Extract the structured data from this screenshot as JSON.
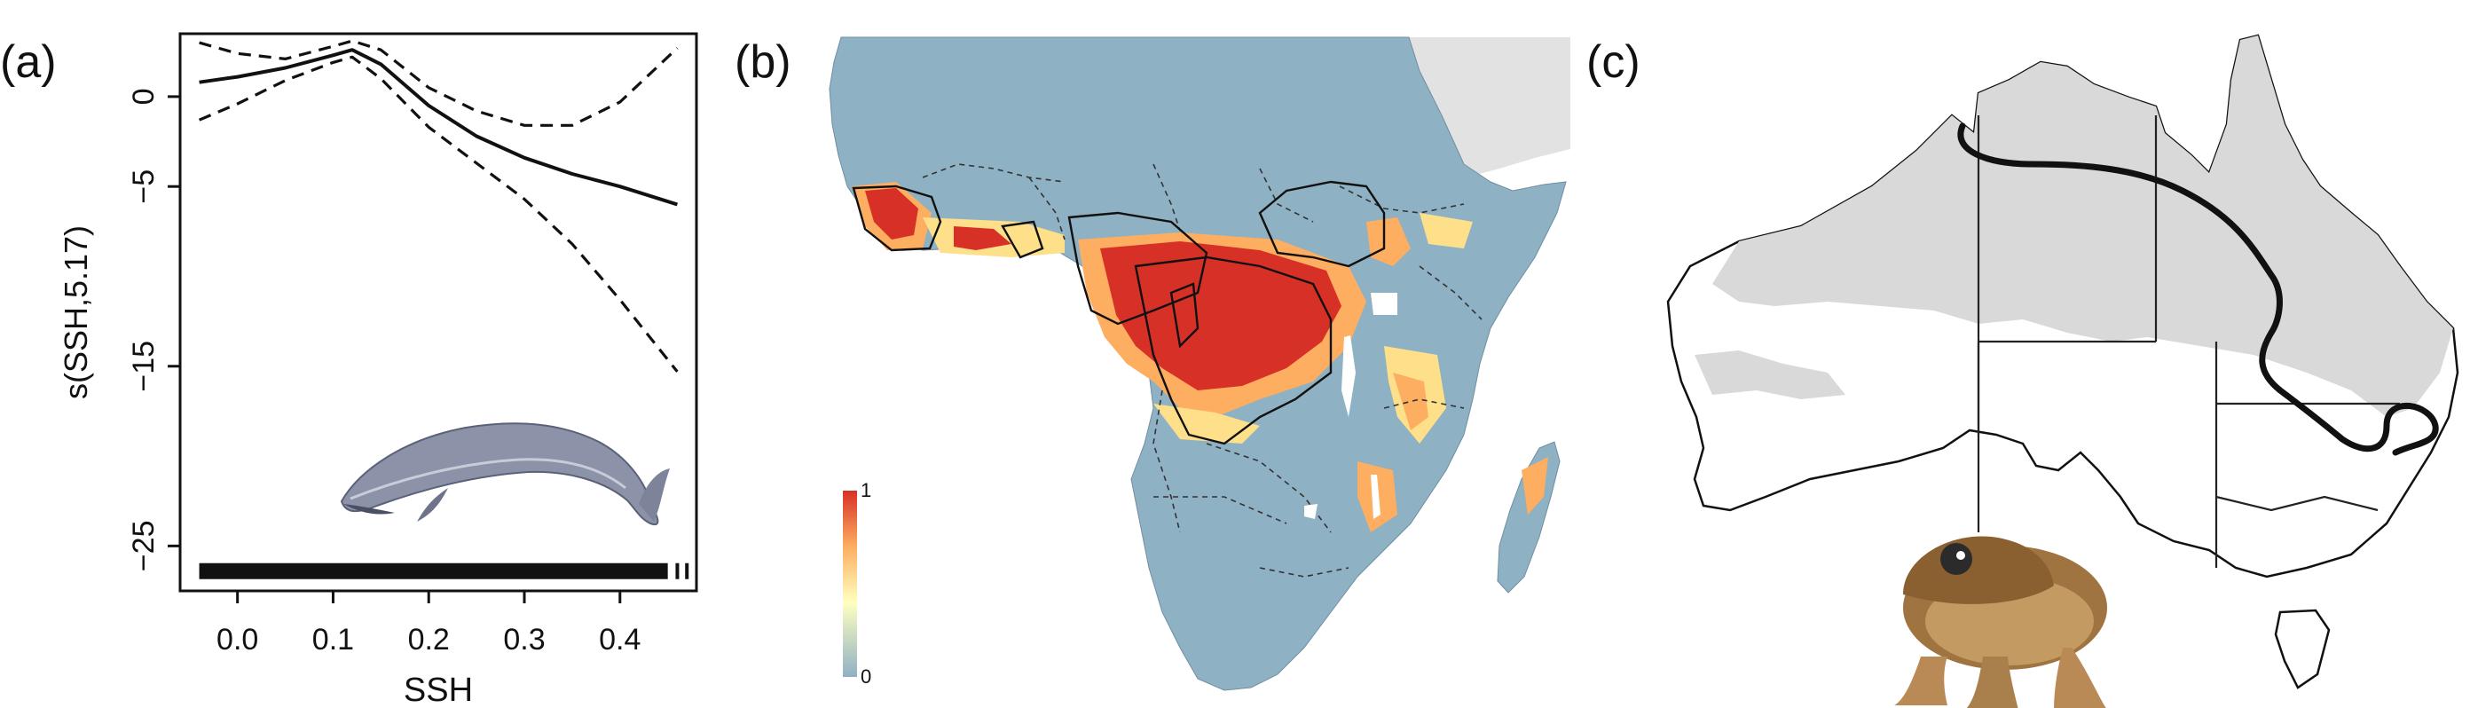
{
  "panels": {
    "a": {
      "label": "(a)"
    },
    "b": {
      "label": "(b)"
    },
    "c": {
      "label": "(c)"
    }
  },
  "chart_data": {
    "type": "line",
    "xlabel": "SSH",
    "ylabel": "s(SSH,5.17)",
    "xlim": [
      -0.06,
      0.48
    ],
    "ylim": [
      -27.5,
      3.5
    ],
    "xticks": [
      0.0,
      0.1,
      0.2,
      0.3,
      0.4
    ],
    "xtick_labels": [
      "0.0",
      "0.1",
      "0.2",
      "0.3",
      "0.4"
    ],
    "yticks": [
      0,
      -5,
      -15,
      -25
    ],
    "ytick_labels": [
      "0",
      "−5",
      "−15",
      "−25"
    ],
    "series": [
      {
        "style": "solid",
        "x": [
          -0.04,
          0.0,
          0.05,
          0.1,
          0.12,
          0.15,
          0.2,
          0.25,
          0.3,
          0.35,
          0.4,
          0.46
        ],
        "y": [
          0.8,
          1.1,
          1.6,
          2.3,
          2.6,
          1.8,
          -0.5,
          -2.2,
          -3.4,
          -4.3,
          -5.0,
          -6.0
        ]
      },
      {
        "style": "dashed",
        "x": [
          -0.04,
          0.0,
          0.05,
          0.1,
          0.12,
          0.15,
          0.2,
          0.25,
          0.3,
          0.35,
          0.4,
          0.46
        ],
        "y": [
          3.0,
          2.4,
          2.1,
          2.8,
          3.1,
          2.6,
          0.5,
          -0.8,
          -1.6,
          -1.6,
          -0.3,
          2.7
        ]
      },
      {
        "style": "dashed",
        "x": [
          -0.04,
          0.0,
          0.05,
          0.1,
          0.12,
          0.15,
          0.2,
          0.25,
          0.3,
          0.35,
          0.4,
          0.46
        ],
        "y": [
          -1.3,
          -0.4,
          0.9,
          1.9,
          2.2,
          1.0,
          -1.7,
          -3.7,
          -5.7,
          -8.2,
          -11.3,
          -15.3
        ]
      }
    ],
    "rug": {
      "from": -0.04,
      "to": 0.45,
      "tail": [
        0.46,
        0.47
      ]
    }
  },
  "map_b": {
    "legend": {
      "max": "1",
      "min": "0"
    },
    "colors": {
      "ocean": "#ffffff",
      "land": "#8fb1c4",
      "high": "#d73027",
      "mid": "#fdae61",
      "low": "#fee08b",
      "arabia": "#e2e2e2"
    }
  },
  "map_c": {
    "colors": {
      "land": "#ffffff",
      "shade": "#d9d9d9",
      "outline": "#111111"
    }
  },
  "icons": {
    "whale": "whale-icon",
    "toad": "cane-toad-icon"
  }
}
